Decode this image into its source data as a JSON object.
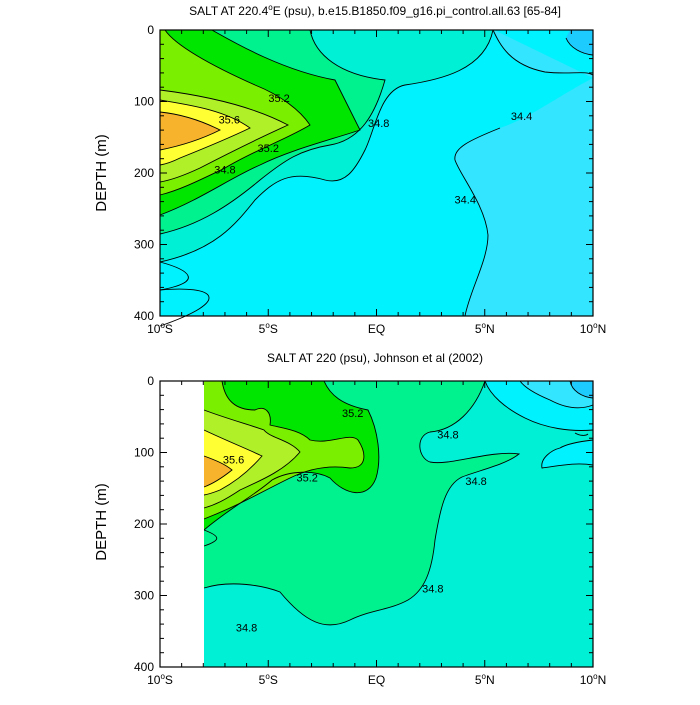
{
  "palette": {
    "orange": "#f7b32b",
    "yellow": "#ffff33",
    "yellowgreen": "#b0f028",
    "lightgreen": "#7af000",
    "green": "#00e600",
    "seagreen": "#00f28f",
    "aqua": "#00f0d6",
    "cyan": "#00f2ff",
    "skyblue": "#33e5ff",
    "deepsky": "#1ecbff",
    "contour": "#000000",
    "background": "#ffffff"
  },
  "chart_data": [
    {
      "type": "contour",
      "title": "SALT AT 220.4°E (psu), b.e15.B1850.f09_g16.pi_control.all.63 [65-84]",
      "title_parts": {
        "pre": "SALT AT 220.4",
        "sup": "o",
        "post": "E (psu), b.e15.B1850.f09_g16.pi_control.all.63 [65-84]"
      },
      "ylabel": "DEPTH (m)",
      "xlim": [
        -10,
        10
      ],
      "ylim": [
        0,
        400
      ],
      "y_inverted": true,
      "x_ticks": [
        {
          "value": -10,
          "num": "10",
          "sup": "o",
          "hemi": "S"
        },
        {
          "value": -5,
          "num": "5",
          "sup": "o",
          "hemi": "S"
        },
        {
          "value": 0,
          "num": "EQ",
          "sup": "",
          "hemi": ""
        },
        {
          "value": 5,
          "num": "5",
          "sup": "o",
          "hemi": "N"
        },
        {
          "value": 10,
          "num": "10",
          "sup": "o",
          "hemi": "N"
        }
      ],
      "y_ticks": [
        0,
        100,
        200,
        300,
        400
      ],
      "contour_labels": [
        {
          "text": "35.2",
          "lat": -4.5,
          "depth": 95
        },
        {
          "text": "35.6",
          "lat": -6.8,
          "depth": 125
        },
        {
          "text": "35.2",
          "lat": -5.0,
          "depth": 165
        },
        {
          "text": "34.8",
          "lat": -7.0,
          "depth": 195
        },
        {
          "text": "34.8",
          "lat": 0.1,
          "depth": 130
        },
        {
          "text": "34.4",
          "lat": 6.7,
          "depth": 120
        },
        {
          "text": "34.4",
          "lat": 4.1,
          "depth": 237
        }
      ]
    },
    {
      "type": "contour",
      "title": "SALT AT 220 (psu), Johnson et al (2002)",
      "title_parts": {
        "pre": "SALT AT 220 (psu), Johnson et al (2002)",
        "sup": "",
        "post": ""
      },
      "ylabel": "DEPTH (m)",
      "xlim": [
        -10,
        10
      ],
      "ylim": [
        0,
        400
      ],
      "y_inverted": true,
      "x_ticks": [
        {
          "value": -10,
          "num": "10",
          "sup": "o",
          "hemi": "S"
        },
        {
          "value": -5,
          "num": "5",
          "sup": "o",
          "hemi": "S"
        },
        {
          "value": 0,
          "num": "EQ",
          "sup": "",
          "hemi": ""
        },
        {
          "value": 5,
          "num": "5",
          "sup": "o",
          "hemi": "N"
        },
        {
          "value": 10,
          "num": "10",
          "sup": "o",
          "hemi": "N"
        }
      ],
      "y_ticks": [
        0,
        100,
        200,
        300,
        400
      ],
      "contour_labels": [
        {
          "text": "35.2",
          "lat": -1.1,
          "depth": 45
        },
        {
          "text": "35.6",
          "lat": -6.6,
          "depth": 110
        },
        {
          "text": "35.2",
          "lat": -3.2,
          "depth": 135
        },
        {
          "text": "34.8",
          "lat": 3.3,
          "depth": 75
        },
        {
          "text": "34.8",
          "lat": 4.6,
          "depth": 140
        },
        {
          "text": "34.8",
          "lat": 2.6,
          "depth": 290
        },
        {
          "text": "34.8",
          "lat": -6.0,
          "depth": 345
        }
      ]
    }
  ]
}
